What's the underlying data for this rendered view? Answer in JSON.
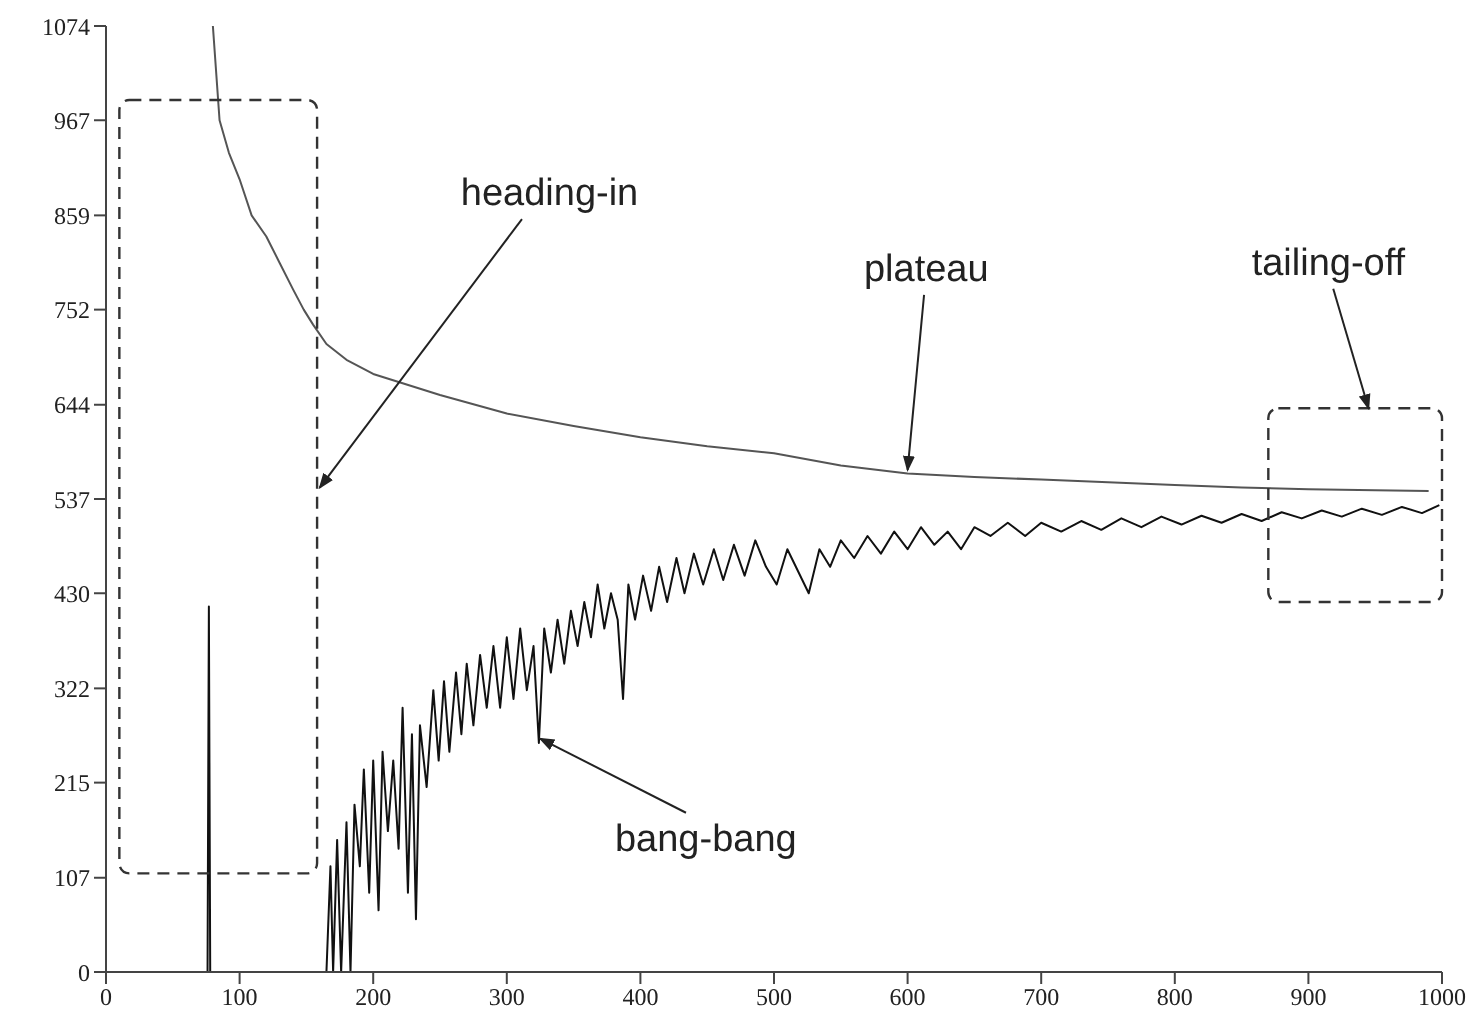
{
  "chart_data": {
    "type": "line",
    "xlim": [
      0,
      1000
    ],
    "ylim": [
      0,
      1074
    ],
    "xticks": [
      0,
      100,
      200,
      300,
      400,
      500,
      600,
      700,
      800,
      900,
      1000
    ],
    "yticks": [
      0,
      107,
      215,
      322,
      430,
      537,
      644,
      752,
      859,
      967,
      1074
    ],
    "marker": "none",
    "line_style": "solid",
    "series": [
      {
        "color": "#555555",
        "x": [
          80,
          85,
          92,
          100,
          109,
          120,
          130,
          140,
          148,
          155,
          165,
          180,
          200,
          250,
          300,
          350,
          400,
          450,
          500,
          550,
          600,
          650,
          700,
          750,
          800,
          850,
          900,
          950,
          990
        ],
        "values": [
          1074,
          967,
          930,
          900,
          859,
          835,
          805,
          775,
          752,
          735,
          713,
          695,
          679,
          655,
          634,
          620,
          607,
          597,
          589,
          575,
          566,
          562,
          559,
          556,
          553,
          550,
          548,
          547,
          546
        ]
      },
      {
        "color": "#111111",
        "x": [
          76,
          77,
          78,
          120,
          165,
          168,
          170,
          173,
          176,
          180,
          183,
          186,
          190,
          193,
          197,
          200,
          204,
          207,
          211,
          215,
          219,
          222,
          226,
          229,
          232,
          235,
          240,
          245,
          249,
          253,
          257,
          262,
          266,
          270,
          275,
          280,
          285,
          290,
          295,
          300,
          305,
          310,
          315,
          320,
          324,
          328,
          333,
          338,
          343,
          348,
          353,
          358,
          363,
          368,
          373,
          378,
          383,
          387,
          391,
          396,
          402,
          408,
          414,
          420,
          427,
          433,
          440,
          447,
          455,
          462,
          470,
          478,
          486,
          494,
          502,
          510,
          518,
          526,
          534,
          542,
          550,
          560,
          570,
          580,
          590,
          600,
          610,
          620,
          630,
          640,
          650,
          662,
          675,
          688,
          700,
          715,
          730,
          745,
          760,
          775,
          790,
          805,
          820,
          835,
          850,
          865,
          880,
          895,
          910,
          925,
          940,
          955,
          970,
          985,
          998
        ],
        "values": [
          0,
          415,
          0,
          null,
          0,
          120,
          0,
          150,
          0,
          170,
          0,
          190,
          120,
          230,
          90,
          240,
          70,
          250,
          160,
          240,
          140,
          300,
          90,
          270,
          60,
          280,
          210,
          320,
          240,
          330,
          250,
          340,
          270,
          350,
          280,
          360,
          300,
          370,
          300,
          380,
          310,
          390,
          320,
          370,
          260,
          390,
          340,
          400,
          350,
          410,
          370,
          420,
          380,
          440,
          390,
          430,
          400,
          310,
          440,
          400,
          450,
          410,
          460,
          420,
          470,
          430,
          475,
          440,
          480,
          445,
          485,
          450,
          490,
          460,
          440,
          480,
          455,
          430,
          480,
          460,
          490,
          470,
          495,
          475,
          500,
          480,
          505,
          485,
          500,
          480,
          505,
          495,
          510,
          495,
          510,
          500,
          512,
          502,
          515,
          505,
          517,
          508,
          518,
          510,
          520,
          512,
          522,
          515,
          524,
          517,
          526,
          519,
          528,
          521,
          530
        ]
      }
    ],
    "annotations": [
      "heading-in",
      {
        "text": "plateau",
        "x": 600,
        "y": 570
      },
      "tailing-off",
      {
        "text": "bang-bang",
        "x": 325,
        "y": 265
      }
    ]
  }
}
